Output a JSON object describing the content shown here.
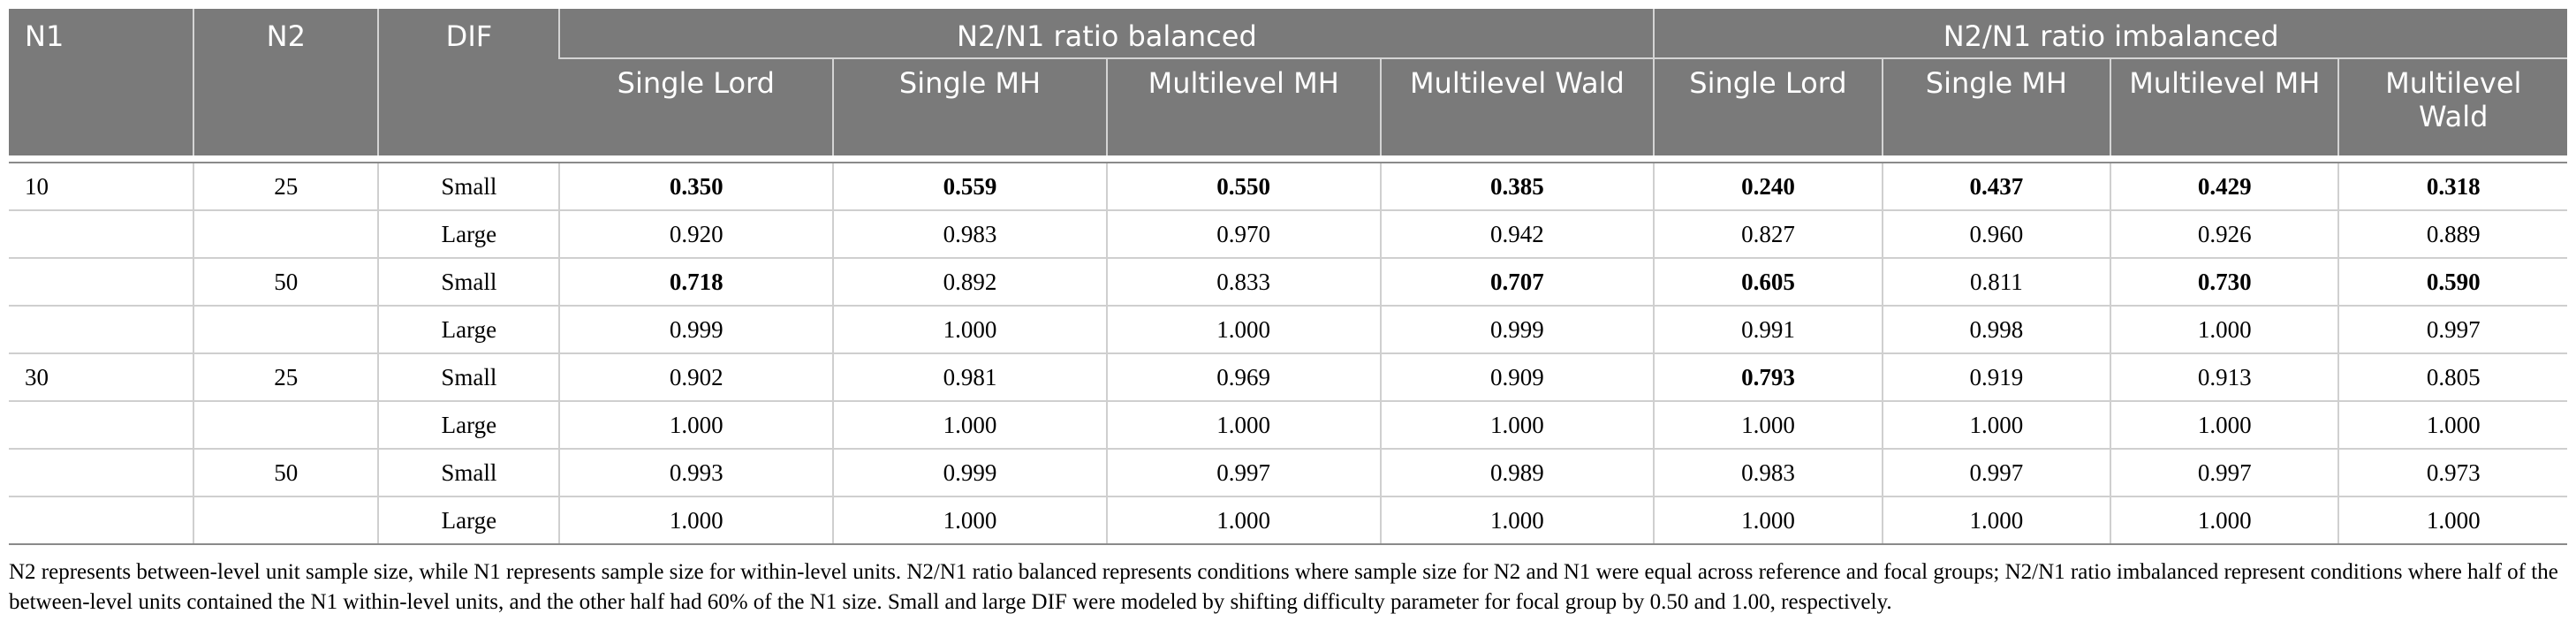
{
  "header": {
    "n1": "N1",
    "n2": "N2",
    "dif": "DIF",
    "group_balanced": "N2/N1 ratio balanced",
    "group_imbalanced": "N2/N1 ratio imbalanced",
    "subcols": [
      "Single Lord",
      "Single MH",
      "Multilevel MH",
      "Multilevel Wald",
      "Single Lord",
      "Single MH",
      "Multilevel MH",
      "Multilevel Wald"
    ]
  },
  "rows": [
    {
      "n1": "10",
      "n2": "25",
      "dif": "Small",
      "values": [
        "0.350",
        "0.559",
        "0.550",
        "0.385",
        "0.240",
        "0.437",
        "0.429",
        "0.318"
      ],
      "bold": [
        true,
        true,
        true,
        true,
        true,
        true,
        true,
        true
      ]
    },
    {
      "n1": "",
      "n2": "",
      "dif": "Large",
      "values": [
        "0.920",
        "0.983",
        "0.970",
        "0.942",
        "0.827",
        "0.960",
        "0.926",
        "0.889"
      ],
      "bold": [
        false,
        false,
        false,
        false,
        false,
        false,
        false,
        false
      ]
    },
    {
      "n1": "",
      "n2": "50",
      "dif": "Small",
      "values": [
        "0.718",
        "0.892",
        "0.833",
        "0.707",
        "0.605",
        "0.811",
        "0.730",
        "0.590"
      ],
      "bold": [
        true,
        false,
        false,
        true,
        true,
        false,
        true,
        true
      ]
    },
    {
      "n1": "",
      "n2": "",
      "dif": "Large",
      "values": [
        "0.999",
        "1.000",
        "1.000",
        "0.999",
        "0.991",
        "0.998",
        "1.000",
        "0.997"
      ],
      "bold": [
        false,
        false,
        false,
        false,
        false,
        false,
        false,
        false
      ]
    },
    {
      "n1": "30",
      "n2": "25",
      "dif": "Small",
      "values": [
        "0.902",
        "0.981",
        "0.969",
        "0.909",
        "0.793",
        "0.919",
        "0.913",
        "0.805"
      ],
      "bold": [
        false,
        false,
        false,
        false,
        true,
        false,
        false,
        false
      ]
    },
    {
      "n1": "",
      "n2": "",
      "dif": "Large",
      "values": [
        "1.000",
        "1.000",
        "1.000",
        "1.000",
        "1.000",
        "1.000",
        "1.000",
        "1.000"
      ],
      "bold": [
        false,
        false,
        false,
        false,
        false,
        false,
        false,
        false
      ]
    },
    {
      "n1": "",
      "n2": "50",
      "dif": "Small",
      "values": [
        "0.993",
        "0.999",
        "0.997",
        "0.989",
        "0.983",
        "0.997",
        "0.997",
        "0.973"
      ],
      "bold": [
        false,
        false,
        false,
        false,
        false,
        false,
        false,
        false
      ]
    },
    {
      "n1": "",
      "n2": "",
      "dif": "Large",
      "values": [
        "1.000",
        "1.000",
        "1.000",
        "1.000",
        "1.000",
        "1.000",
        "1.000",
        "1.000"
      ],
      "bold": [
        false,
        false,
        false,
        false,
        false,
        false,
        false,
        false
      ]
    }
  ],
  "footnote": "N2 represents between-level unit sample size, while N1 represents sample size for within-level units. N2/N1 ratio balanced represents conditions where sample size for N2 and N1 were equal across reference and focal groups; N2/N1 ratio imbalanced represent conditions where half of the between-level units contained the N1 within-level units, and the other half had 60% of the N1 size. Small and large DIF were modeled by shifting difficulty parameter for focal group by 0.50 and 1.00, respectively."
}
